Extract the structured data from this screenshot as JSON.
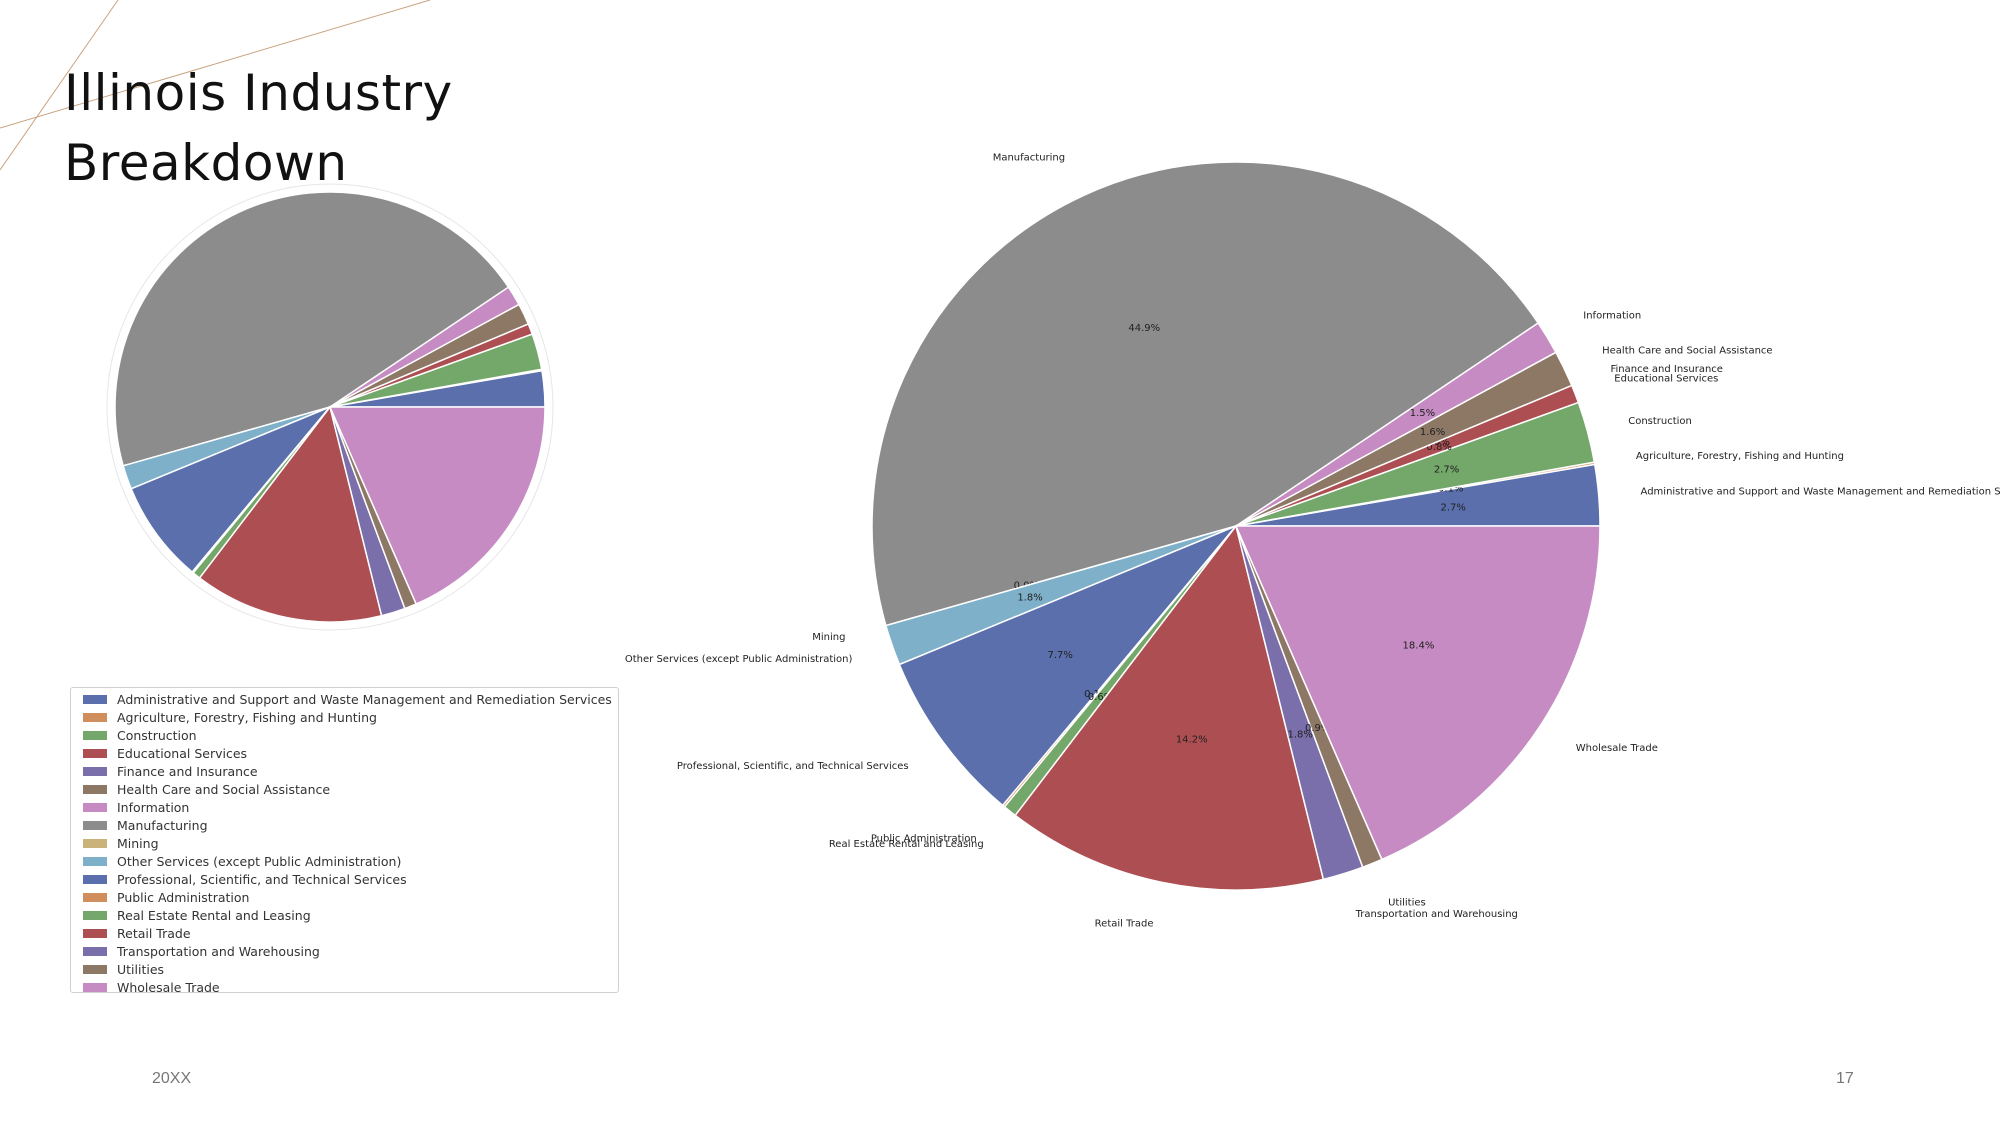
{
  "slide": {
    "title": "Illinois Industry\nBreakdown",
    "footer_left": "20XX",
    "footer_right": "17",
    "accent_line_color": "#c9a27e"
  },
  "chart_data": [
    {
      "type": "pie",
      "title": "",
      "legend": "inside-bottom-left",
      "show_labels": false,
      "start_angle": 0,
      "direction": "counterclockwise",
      "slices": [
        {
          "label": "Administrative and Support and Waste Management and Remediation Services",
          "value": 2.7,
          "color": "#5a6fac"
        },
        {
          "label": "Agriculture, Forestry, Fishing and Hunting",
          "value": 0.1,
          "color": "#d08e5c"
        },
        {
          "label": "Construction",
          "value": 2.7,
          "color": "#74a86b"
        },
        {
          "label": "Educational Services",
          "value": 0.8,
          "color": "#ad4f52"
        },
        {
          "label": "Finance and Insurance",
          "value": 0.0,
          "color": "#7b6fab"
        },
        {
          "label": "Health Care and Social Assistance",
          "value": 1.6,
          "color": "#8d7866"
        },
        {
          "label": "Information",
          "value": 1.5,
          "color": "#c68bc2"
        },
        {
          "label": "Manufacturing",
          "value": 44.9,
          "color": "#8c8c8c"
        },
        {
          "label": "Mining",
          "value": 0.0,
          "color": "#c9b37a"
        },
        {
          "label": "Other Services (except Public Administration)",
          "value": 1.8,
          "color": "#7fb0c9"
        },
        {
          "label": "Professional, Scientific, and Technical Services",
          "value": 7.7,
          "color": "#5a6fac"
        },
        {
          "label": "Public Administration",
          "value": 0.1,
          "color": "#d08e5c"
        },
        {
          "label": "Real Estate Rental and Leasing",
          "value": 0.6,
          "color": "#74a86b"
        },
        {
          "label": "Retail Trade",
          "value": 14.2,
          "color": "#ad4f52"
        },
        {
          "label": "Transportation and Warehousing",
          "value": 1.8,
          "color": "#7b6fab"
        },
        {
          "label": "Utilities",
          "value": 0.9,
          "color": "#8d7866"
        },
        {
          "label": "Wholesale Trade",
          "value": 18.4,
          "color": "#c68bc2"
        }
      ]
    },
    {
      "type": "pie",
      "title": "",
      "legend": "none",
      "show_labels": true,
      "start_angle": 0,
      "direction": "counterclockwise",
      "slices": [
        {
          "label": "Administrative and Support and Waste Management and Remediation Services",
          "value": 2.7,
          "pct": "2.7%",
          "color": "#5a6fac"
        },
        {
          "label": "Agriculture, Forestry, Fishing and Hunting",
          "value": 0.1,
          "pct": "0.1%",
          "color": "#d08e5c"
        },
        {
          "label": "Construction",
          "value": 2.7,
          "pct": "2.7%",
          "color": "#74a86b"
        },
        {
          "label": "Educational Services",
          "value": 0.8,
          "pct": "0.8%",
          "color": "#ad4f52"
        },
        {
          "label": "Finance and Insurance",
          "value": 0.0,
          "pct": "0.0%",
          "color": "#7b6fab"
        },
        {
          "label": "Health Care and Social Assistance",
          "value": 1.6,
          "pct": "1.6%",
          "color": "#8d7866"
        },
        {
          "label": "Information",
          "value": 1.5,
          "pct": "1.5%",
          "color": "#c68bc2"
        },
        {
          "label": "Manufacturing",
          "value": 44.9,
          "pct": "44.9%",
          "color": "#8c8c8c"
        },
        {
          "label": "Mining",
          "value": 0.0,
          "pct": "0.0%",
          "color": "#c9b37a"
        },
        {
          "label": "Other Services (except Public Administration)",
          "value": 1.8,
          "pct": "1.8%",
          "color": "#7fb0c9"
        },
        {
          "label": "Professional, Scientific, and Technical Services",
          "value": 7.7,
          "pct": "7.7%",
          "color": "#5a6fac"
        },
        {
          "label": "Public Administration",
          "value": 0.1,
          "pct": "0.1%",
          "color": "#d08e5c"
        },
        {
          "label": "Real Estate Rental and Leasing",
          "value": 0.6,
          "pct": "0.6%",
          "color": "#74a86b"
        },
        {
          "label": "Retail Trade",
          "value": 14.2,
          "pct": "14.2%",
          "color": "#ad4f52"
        },
        {
          "label": "Transportation and Warehousing",
          "value": 1.8,
          "pct": "1.8%",
          "color": "#7b6fab"
        },
        {
          "label": "Utilities",
          "value": 0.9,
          "pct": "0.9%",
          "color": "#8d7866"
        },
        {
          "label": "Wholesale Trade",
          "value": 18.4,
          "pct": "18.4%",
          "color": "#c68bc2"
        }
      ]
    }
  ]
}
